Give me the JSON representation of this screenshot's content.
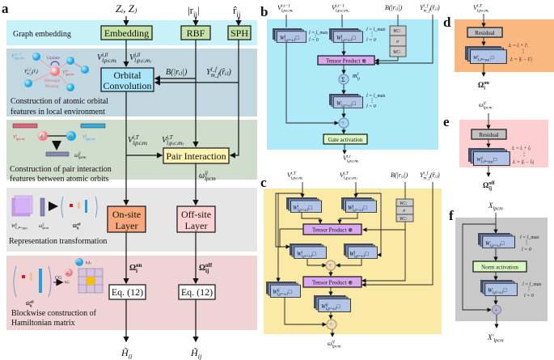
{
  "panel_labels": {
    "a": "a",
    "b": "b",
    "c": "c",
    "d": "d",
    "e": "e",
    "f": "f"
  },
  "colors": {
    "band_embedding": "#c9f1f8",
    "band_orbital": "#c3d7e1",
    "band_pair": "#d0ddcc",
    "band_repr": "#e6e6e6",
    "band_hamiltonian": "#efd3d5",
    "panel_b": "#aeeaf8",
    "panel_c": "#fbe9a6",
    "panel_d": "#fbb780",
    "panel_e": "#fcd0d0",
    "panel_f": "#c9c9c9",
    "embedding_box": "#c6e2a6",
    "orbital_box": "#a9e4f8",
    "pair_box": "#fff4b4",
    "onsite_box": "#f8a87a",
    "offsite_box": "#fcd2d2",
    "tensor_box": "#d9a9f0",
    "gate_box": "#dcf8c5",
    "residual_box": "#c2c2c2",
    "weight_front": "#b3c5e6"
  },
  "a": {
    "inputs": {
      "z": {
        "b": "Z",
        "sub": "i",
        "post": ", Z",
        "post2": "j"
      },
      "zz": {
        "b": "Zᵢ, Zⱼ"
      },
      "r": {
        "pre": "|",
        "b": "r",
        "sub": "ij",
        "post": "|"
      },
      "rhat": {
        "b": "r̂",
        "sub": "ij"
      }
    },
    "bands": {
      "embedding": "Graph embedding",
      "orbital_1": "Construction of atomic orbital",
      "orbital_2": "features in local environment",
      "pair_1": "Construction of pair interaction",
      "pair_2": "features between atomic orbits",
      "repr": "Representation transformation",
      "ham_1": "Blockwise construction of",
      "ham_2": "Hamiltonian matrix"
    },
    "boxes": {
      "embedding": "Embedding",
      "rbf": "RBF",
      "sph": "SPH",
      "orbital_1": "Orbital",
      "orbital_2": "Convolution",
      "pair": "Pair Interaction",
      "onsite_1": "On-site",
      "onsite_2": "Layer",
      "offsite_1": "Off-site",
      "offsite_2": "Layer",
      "eq_onsite": "Eq. (12)",
      "eq_offsite": "Eq. (12)"
    },
    "labels": {
      "vi0": {
        "b": "V",
        "sup": "i,0",
        "sub": "lᵢpᵢcᵢmᵢ"
      },
      "vj0": {
        "b": "V",
        "sup": "j,0",
        "sub": "lⱼpⱼcⱼmⱼ"
      },
      "brij": {
        "b": "B",
        "post": "(|rᵢⱼ|)"
      },
      "y": {
        "b": "Y",
        "sup": "l_f",
        "sub": "m_f",
        "post": "(r̂ᵢⱼ)"
      },
      "viT": {
        "b": "V",
        "sup": "i,T",
        "sub": "lᵢpᵢcᵢmᵢ"
      },
      "vjT": {
        "b": "V",
        "sup": "j,T",
        "sub": "lⱼpⱼcⱼmⱼ"
      },
      "omega": {
        "b": "ω",
        "sup": "ij",
        "sub": "lpcm"
      },
      "omega_on": {
        "b": "Ω",
        "sup": "on",
        "sub": "i"
      },
      "omega_off": {
        "b": "Ω",
        "sup": "off",
        "sub": "ij"
      },
      "h_ii": {
        "b": "H̃",
        "sub": "ii"
      },
      "h_ij": {
        "b": "H̃",
        "sub": "ij"
      }
    },
    "illustration": {
      "update": "Update",
      "message_1": "Message",
      "message_2": "Passing",
      "v_prev": {
        "b": "V",
        "sup": "i,t−1",
        "sub": "lⱼpⱼcⱼmⱼ"
      },
      "y_small": {
        "b": "Y",
        "sup": "l_f",
        "sub": "m_f",
        "post": "(r̂ᵢ)"
      },
      "v_cur": {
        "b": "V",
        "sup": "i,t",
        "sub": "lᵢpᵢcᵢmᵢ"
      },
      "v_i": {
        "b": "V",
        "sup": "i",
        "sub": "lᵢpᵢcᵢmᵢ"
      },
      "v_j": {
        "b": "V",
        "sup": "j",
        "sub": "lⱼpⱼcⱼmⱼ"
      },
      "z_i": "Zᵢ",
      "z_j": "Zⱼ",
      "omega_pair": {
        "b": "ω",
        "sup": "ij",
        "sub": "lpcm"
      },
      "w_repr": {
        "b": "W",
        "sup": "ij",
        "sub": "L,P=pᵢpⱼ"
      },
      "omega_repr": {
        "b": "ω",
        "sup": "ij",
        "sub": "lpcm"
      },
      "omega_off_repr": {
        "b": "Ω",
        "sup": "off",
        "sub": "ij"
      },
      "cg": "CG",
      "njlj": "nⱼlⱼ",
      "nili": "nᵢlᵢ",
      "omega_off_ham": {
        "b": "Ω",
        "sup": "off",
        "sub": "ij"
      }
    }
  },
  "b": {
    "inputs": {
      "vi": {
        "b": "V",
        "sup": "i,t−1",
        "sub": "lᵢpᵢcᵢmᵢ"
      },
      "vj": {
        "b": "V",
        "sup": "j,t−1",
        "sub": "lⱼpⱼcⱼmⱼ"
      },
      "brij": {
        "b": "B",
        "post": "(|rᵢⱼ|)"
      },
      "y": {
        "b": "Y",
        "sup": "l_f",
        "sub": "m_f",
        "post": "(r̂ᵢⱼ)"
      }
    },
    "weights": {
      "w1": {
        "b": "W",
        "sup": "j",
        "sub": "l,p=±1",
        "post": "□"
      },
      "w2": {
        "b": "W",
        "sup": "j",
        "sub": "l,p=±1",
        "post": "□"
      },
      "w3": {
        "b": "W",
        "sub": "l,p=±1",
        "post": "□"
      }
    },
    "range": {
      "top": "l = l_max",
      "dots": "⋮",
      "bottom": "l = 0"
    },
    "mlp": {
      "w_top": "W□",
      "sigma": "σ",
      "w_bottom": "W□"
    },
    "tensor_product": "Tensor Product ⊗",
    "message": {
      "b": "m",
      "sup": "l",
      "sub": "ij"
    },
    "sum": "Σ",
    "plus": "+",
    "gate": "Gate activation",
    "output": {
      "b": "V",
      "sup": "i,t",
      "sub": "lᵢpᵢcᵢmᵢ"
    }
  },
  "c": {
    "inputs": {
      "vi": {
        "b": "V",
        "sup": "i,T",
        "sub": "lᵢpᵢcᵢmᵢ"
      },
      "vj": {
        "b": "V",
        "sup": "j,T",
        "sub": "lⱼpⱼcⱼmⱼ"
      },
      "brij": {
        "b": "B",
        "post": "(|rᵢⱼ|)"
      },
      "y": {
        "b": "Y",
        "sup": "l_f",
        "sub": "m_f",
        "post": "(r̂ᵢⱼ)"
      }
    },
    "weights": {
      "w1": {
        "b": "W",
        "sup": "i",
        "sub": "l,p=±1",
        "post": "□"
      },
      "w2": {
        "b": "W",
        "sup": "j",
        "sub": "l,p=±1",
        "post": "□"
      },
      "w3": {
        "b": "W",
        "sup": "i",
        "sub": "l,p=±1",
        "post": "□"
      },
      "w4": {
        "b": "W",
        "sup": "j",
        "sub": "l,p=±1",
        "post": "□"
      },
      "w5": {
        "b": "W",
        "sup": "ij",
        "sub": "l,p=±1",
        "post": "□"
      },
      "w6": {
        "b": "W",
        "sup": "ij",
        "sub": "l,p=±1",
        "post": "□"
      }
    },
    "mlp": {
      "w_top": "W□",
      "sigma": "σ",
      "w_bottom": "W□"
    },
    "tensor_product_1": "Tensor Product ⊗",
    "tensor_product_2": "Tensor Product ⊗",
    "plus": "+",
    "output": {
      "b": "ω",
      "sup": "ij",
      "sub": "lpcm"
    }
  },
  "d": {
    "input": {
      "b": "V",
      "sup": "i,T",
      "sub": "lᵢpᵢcᵢmᵢ"
    },
    "residual": "Residual",
    "weight": {
      "b": "W",
      "sup": "i",
      "sub": "L,P=pᵢp'ᵢ",
      "post": "□"
    },
    "range": {
      "top": "L = lᵢ + l'ᵢ",
      "dots": "⋮",
      "bottom": "L = |lᵢ − l'ᵢ|"
    },
    "output": {
      "b": "Ω",
      "sup": "on",
      "sub": "i"
    }
  },
  "e": {
    "input": {
      "b": "ω",
      "sup": "ij",
      "sub": "lpcm"
    },
    "residual": "Residual",
    "weight": {
      "b": "W",
      "sup": "ij",
      "sub": "L,P=pᵢpⱼ",
      "post": "□"
    },
    "range": {
      "top": "L = lᵢ + lⱼ",
      "dots": "⋮",
      "bottom": "L = |lᵢ − lⱼ|"
    },
    "output": {
      "b": "Ω",
      "sup": "off",
      "sub": "ij"
    }
  },
  "f": {
    "input": {
      "b": "X",
      "sub": "lpcm"
    },
    "weight_1": {
      "b": "W",
      "sub": "l,p=±1",
      "post": "□"
    },
    "weight_2": {
      "b": "W",
      "sub": "l,p=±1",
      "post": "□"
    },
    "range_1": {
      "top": "l = l_max",
      "dots": "⋮",
      "bottom": "l = 0"
    },
    "range_2": {
      "top": "l = l_max",
      "dots": "⋮",
      "bottom": "l = 0"
    },
    "norm": "Norm activation",
    "plus": "+",
    "output": {
      "b": "X'",
      "sub": "lpcm"
    }
  }
}
